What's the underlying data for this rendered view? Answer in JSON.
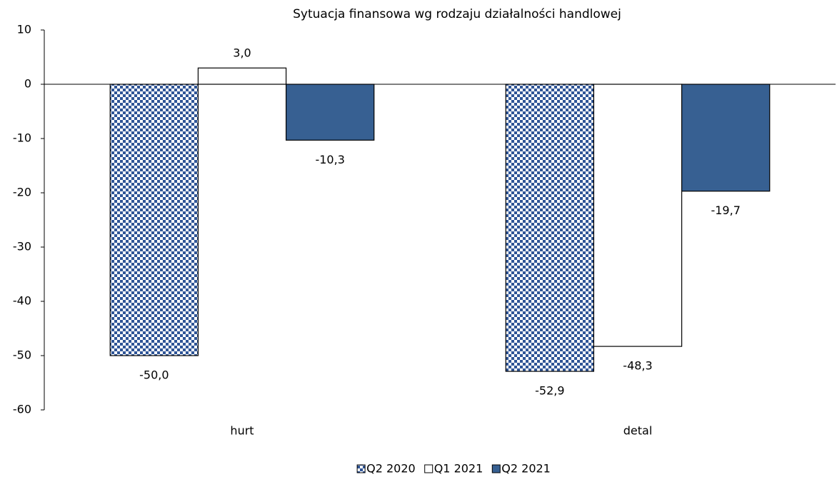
{
  "chart_data": {
    "type": "bar",
    "title": "Sytuacja finansowa wg rodzaju działalności handlowej",
    "categories": [
      "hurt",
      "detal"
    ],
    "series": [
      {
        "name": "Q2 2020",
        "color": "#2f5597",
        "pattern": "checker",
        "values": [
          -50.0,
          -52.9
        ],
        "value_labels": [
          "-50,0",
          "-52,9"
        ]
      },
      {
        "name": "Q1 2021",
        "color": "#ffffff",
        "values": [
          3.0,
          -48.3
        ],
        "value_labels": [
          "3,0",
          "-48,3"
        ]
      },
      {
        "name": "Q2 2021",
        "color": "#376092",
        "values": [
          -10.3,
          -19.7
        ],
        "value_labels": [
          "-10,3",
          "-19,7"
        ]
      }
    ],
    "ylim": [
      -60,
      10
    ],
    "yticks": [
      10,
      0,
      -10,
      -20,
      -30,
      -40,
      -50,
      -60
    ],
    "legend": "bottom"
  }
}
